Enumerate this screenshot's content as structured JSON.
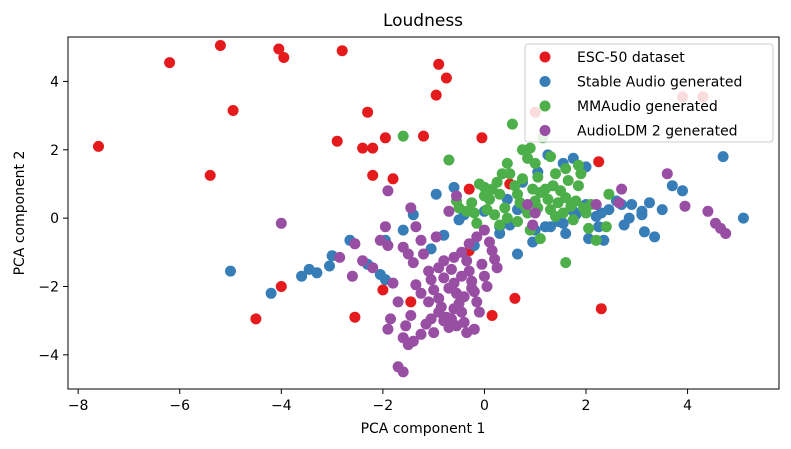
{
  "chart_data": {
    "type": "scatter",
    "title": "Loudness",
    "xlabel": "PCA component 1",
    "ylabel": "PCA component 2",
    "xlim": [
      -8.2,
      5.8
    ],
    "ylim": [
      -5.0,
      5.3
    ],
    "xticks": [
      -8,
      -6,
      -4,
      -2,
      0,
      2,
      4
    ],
    "yticks": [
      -4,
      -2,
      0,
      2,
      4
    ],
    "tick_labels": {
      "x": [
        "−8",
        "−6",
        "−4",
        "−2",
        "0",
        "2",
        "4"
      ],
      "y": [
        "−4",
        "−2",
        "0",
        "2",
        "4"
      ]
    },
    "legend_position": "top-right",
    "series": [
      {
        "name": "ESC-50 dataset",
        "color": "#e41a1c",
        "points": [
          [
            -7.6,
            2.1
          ],
          [
            -6.2,
            4.55
          ],
          [
            -5.2,
            5.05
          ],
          [
            -4.95,
            3.15
          ],
          [
            -5.4,
            1.25
          ],
          [
            -4.05,
            4.95
          ],
          [
            -3.95,
            4.7
          ],
          [
            -2.8,
            4.9
          ],
          [
            -2.9,
            2.25
          ],
          [
            -2.3,
            3.1
          ],
          [
            -2.4,
            2.05
          ],
          [
            -2.2,
            2.05
          ],
          [
            -1.95,
            2.35
          ],
          [
            -1.8,
            1.15
          ],
          [
            -2.2,
            1.25
          ],
          [
            -1.2,
            2.4
          ],
          [
            -0.9,
            4.5
          ],
          [
            -0.75,
            4.1
          ],
          [
            -0.95,
            3.6
          ],
          [
            -0.05,
            2.35
          ],
          [
            -4.0,
            -2.0
          ],
          [
            -4.5,
            -2.95
          ],
          [
            -2.0,
            -2.1
          ],
          [
            -2.55,
            -2.9
          ],
          [
            -1.45,
            -2.45
          ],
          [
            0.15,
            -2.85
          ],
          [
            0.6,
            -2.35
          ],
          [
            2.3,
            -2.65
          ],
          [
            -0.3,
            0.85
          ],
          [
            -0.3,
            -0.95
          ],
          [
            1.0,
            3.1
          ],
          [
            2.25,
            1.65
          ],
          [
            3.9,
            3.55
          ],
          [
            4.3,
            3.55
          ],
          [
            0.5,
            1.0
          ]
        ]
      },
      {
        "name": "Stable Audio generated",
        "color": "#377eb8",
        "points": [
          [
            -5.0,
            -1.55
          ],
          [
            -4.2,
            -2.2
          ],
          [
            -3.6,
            -1.7
          ],
          [
            -3.45,
            -1.5
          ],
          [
            -3.3,
            -1.6
          ],
          [
            -3.05,
            -1.4
          ],
          [
            -3.0,
            -1.1
          ],
          [
            -2.65,
            -0.65
          ],
          [
            -2.3,
            -1.35
          ],
          [
            -2.05,
            -1.65
          ],
          [
            -1.95,
            -1.8
          ],
          [
            -1.6,
            -0.35
          ],
          [
            -1.05,
            -0.9
          ],
          [
            -0.95,
            0.7
          ],
          [
            -0.6,
            0.9
          ],
          [
            -0.4,
            0.1
          ],
          [
            0.0,
            0.2
          ],
          [
            0.3,
            -0.25
          ],
          [
            0.65,
            -1.05
          ],
          [
            0.95,
            -0.7
          ],
          [
            1.2,
            -0.25
          ],
          [
            1.45,
            -0.1
          ],
          [
            1.75,
            0.2
          ],
          [
            2.0,
            0.4
          ],
          [
            2.3,
            0.15
          ],
          [
            2.45,
            0.25
          ],
          [
            2.7,
            0.4
          ],
          [
            2.9,
            0.4
          ],
          [
            3.1,
            0.2
          ],
          [
            3.25,
            0.45
          ],
          [
            3.5,
            0.25
          ],
          [
            3.35,
            -0.55
          ],
          [
            3.15,
            -0.4
          ],
          [
            2.75,
            -0.2
          ],
          [
            2.25,
            -0.25
          ],
          [
            2.05,
            -0.6
          ],
          [
            2.35,
            -0.65
          ],
          [
            3.7,
            0.95
          ],
          [
            3.9,
            0.8
          ],
          [
            4.7,
            1.8
          ],
          [
            5.1,
            0.0
          ],
          [
            1.75,
            1.75
          ],
          [
            1.25,
            1.85
          ],
          [
            1.05,
            1.35
          ],
          [
            0.75,
            1.05
          ],
          [
            1.55,
            1.6
          ],
          [
            2.0,
            1.5
          ],
          [
            0.45,
            0.55
          ],
          [
            0.65,
            0.25
          ],
          [
            1.55,
            -0.15
          ],
          [
            1.6,
            -0.45
          ],
          [
            1.3,
            -0.25
          ],
          [
            1.0,
            -0.35
          ],
          [
            0.5,
            -0.2
          ],
          [
            0.3,
            -0.45
          ],
          [
            -0.5,
            -0.05
          ],
          [
            -1.4,
            0.1
          ],
          [
            -1.95,
            -0.65
          ],
          [
            -0.8,
            -0.5
          ],
          [
            -0.2,
            -0.8
          ],
          [
            3.1,
            0.1
          ],
          [
            2.6,
            0.5
          ],
          [
            2.85,
            0.0
          ],
          [
            2.2,
            0.05
          ],
          [
            1.8,
            0.1
          ]
        ]
      },
      {
        "name": "MMAudio generated",
        "color": "#4daf4a",
        "points": [
          [
            -1.6,
            2.4
          ],
          [
            -0.7,
            1.7
          ],
          [
            -0.55,
            0.5
          ],
          [
            -0.5,
            0.3
          ],
          [
            -0.35,
            0.2
          ],
          [
            -0.25,
            0.45
          ],
          [
            -0.2,
            0.15
          ],
          [
            -0.1,
            1.0
          ],
          [
            0.0,
            0.9
          ],
          [
            0.0,
            0.65
          ],
          [
            0.1,
            0.55
          ],
          [
            0.15,
            0.85
          ],
          [
            0.25,
            1.05
          ],
          [
            0.3,
            0.7
          ],
          [
            0.35,
            1.3
          ],
          [
            0.45,
            1.6
          ],
          [
            0.5,
            1.3
          ],
          [
            0.55,
            2.75
          ],
          [
            0.6,
            0.95
          ],
          [
            0.65,
            0.7
          ],
          [
            0.7,
            0.45
          ],
          [
            0.75,
            1.15
          ],
          [
            0.8,
            0.35
          ],
          [
            0.85,
            1.75
          ],
          [
            0.9,
            2.05
          ],
          [
            0.95,
            0.85
          ],
          [
            1.0,
            0.5
          ],
          [
            1.05,
            1.2
          ],
          [
            1.1,
            0.75
          ],
          [
            1.15,
            2.35
          ],
          [
            1.2,
            0.85
          ],
          [
            1.25,
            0.55
          ],
          [
            1.3,
            0.25
          ],
          [
            1.35,
            0.95
          ],
          [
            1.4,
            1.3
          ],
          [
            1.45,
            0.45
          ],
          [
            1.5,
            0.8
          ],
          [
            1.55,
            0.15
          ],
          [
            1.6,
            0.6
          ],
          [
            1.65,
            1.1
          ],
          [
            1.7,
            0.35
          ],
          [
            1.75,
            -0.05
          ],
          [
            1.8,
            0.5
          ],
          [
            1.85,
            0.95
          ],
          [
            1.9,
            1.3
          ],
          [
            1.95,
            0.3
          ],
          [
            2.0,
            0.15
          ],
          [
            2.05,
            -0.3
          ],
          [
            2.1,
            0.4
          ],
          [
            2.2,
            -0.65
          ],
          [
            2.4,
            -0.25
          ],
          [
            2.45,
            0.7
          ],
          [
            1.6,
            -1.3
          ],
          [
            1.1,
            -0.6
          ],
          [
            0.9,
            -0.35
          ],
          [
            0.65,
            -0.1
          ],
          [
            0.45,
            0.0
          ],
          [
            0.3,
            -0.2
          ],
          [
            0.2,
            0.1
          ],
          [
            0.05,
            0.25
          ],
          [
            -0.15,
            -0.15
          ],
          [
            0.4,
            0.3
          ],
          [
            0.75,
            2.0
          ],
          [
            1.0,
            1.6
          ],
          [
            1.3,
            1.8
          ],
          [
            1.6,
            1.45
          ],
          [
            1.85,
            1.55
          ],
          [
            1.4,
            0.05
          ],
          [
            1.05,
            0.3
          ],
          [
            0.85,
            0.15
          ]
        ]
      },
      {
        "name": "AudioLDM 2 generated",
        "color": "#984ea3",
        "points": [
          [
            -4.0,
            -0.15
          ],
          [
            -2.85,
            -1.15
          ],
          [
            -2.6,
            -1.7
          ],
          [
            -2.55,
            -0.75
          ],
          [
            -2.4,
            -1.25
          ],
          [
            -2.2,
            -1.45
          ],
          [
            -2.05,
            -0.65
          ],
          [
            -1.9,
            -0.8
          ],
          [
            -1.8,
            -1.9
          ],
          [
            -1.7,
            -2.45
          ],
          [
            -1.6,
            -0.85
          ],
          [
            -1.5,
            -1.05
          ],
          [
            -1.4,
            -1.3
          ],
          [
            -1.35,
            -0.25
          ],
          [
            -1.25,
            -0.65
          ],
          [
            -1.2,
            -1.05
          ],
          [
            -1.1,
            -1.55
          ],
          [
            -1.05,
            -1.8
          ],
          [
            -1.0,
            -2.1
          ],
          [
            -0.95,
            -0.55
          ],
          [
            -0.9,
            -2.35
          ],
          [
            -0.85,
            -2.6
          ],
          [
            -0.8,
            -1.25
          ],
          [
            -0.75,
            -2.9
          ],
          [
            -0.7,
            -3.2
          ],
          [
            -0.65,
            -1.5
          ],
          [
            -0.6,
            -1.9
          ],
          [
            -0.55,
            -2.2
          ],
          [
            -0.5,
            -2.5
          ],
          [
            -0.45,
            -2.75
          ],
          [
            -0.4,
            -3.05
          ],
          [
            -0.35,
            -1.25
          ],
          [
            -0.3,
            -1.55
          ],
          [
            -0.25,
            -1.85
          ],
          [
            -0.2,
            -2.15
          ],
          [
            -0.15,
            -2.45
          ],
          [
            -0.1,
            -2.75
          ],
          [
            -0.05,
            -1.35
          ],
          [
            0.0,
            -1.7
          ],
          [
            0.05,
            -2.0
          ],
          [
            0.1,
            -0.7
          ],
          [
            0.15,
            -0.95
          ],
          [
            0.2,
            -1.2
          ],
          [
            0.25,
            -1.45
          ],
          [
            -0.7,
            0.2
          ],
          [
            -0.55,
            0.65
          ],
          [
            -1.45,
            -2.85
          ],
          [
            -1.55,
            -3.15
          ],
          [
            -1.6,
            -3.5
          ],
          [
            -1.5,
            -3.7
          ],
          [
            -1.4,
            -3.6
          ],
          [
            -1.25,
            -3.4
          ],
          [
            -1.15,
            -3.1
          ],
          [
            -1.0,
            -3.35
          ],
          [
            -1.7,
            -4.35
          ],
          [
            -1.6,
            -4.5
          ],
          [
            -1.9,
            -3.25
          ],
          [
            -1.85,
            -2.95
          ],
          [
            -1.95,
            -0.25
          ],
          [
            -1.9,
            0.8
          ],
          [
            -0.9,
            -1.45
          ],
          [
            -0.8,
            -1.75
          ],
          [
            -0.6,
            -1.15
          ],
          [
            -0.45,
            -1.0
          ],
          [
            -0.3,
            -0.75
          ],
          [
            -0.15,
            -0.55
          ],
          [
            0.0,
            -0.35
          ],
          [
            -0.2,
            -3.25
          ],
          [
            -0.35,
            -3.35
          ],
          [
            -0.55,
            -3.15
          ],
          [
            -0.8,
            -3.0
          ],
          [
            -0.9,
            -2.75
          ],
          [
            -1.1,
            -2.45
          ],
          [
            -1.25,
            -2.2
          ],
          [
            -1.35,
            -1.95
          ],
          [
            3.6,
            1.3
          ],
          [
            3.95,
            0.35
          ],
          [
            4.4,
            0.2
          ],
          [
            4.55,
            -0.15
          ],
          [
            4.65,
            -0.3
          ],
          [
            4.75,
            -0.45
          ],
          [
            2.2,
            0.4
          ],
          [
            2.65,
            0.45
          ],
          [
            2.7,
            0.85
          ],
          [
            1.0,
            0.15
          ],
          [
            0.85,
            0.4
          ],
          [
            0.95,
            -0.2
          ],
          [
            -1.45,
            0.3
          ],
          [
            -0.7,
            -2.05
          ],
          [
            -0.6,
            -2.65
          ],
          [
            -0.4,
            -2.3
          ],
          [
            -0.25,
            -2.05
          ],
          [
            -0.65,
            -2.95
          ],
          [
            -0.45,
            -1.7
          ],
          [
            -1.05,
            -2.95
          ]
        ]
      }
    ]
  }
}
